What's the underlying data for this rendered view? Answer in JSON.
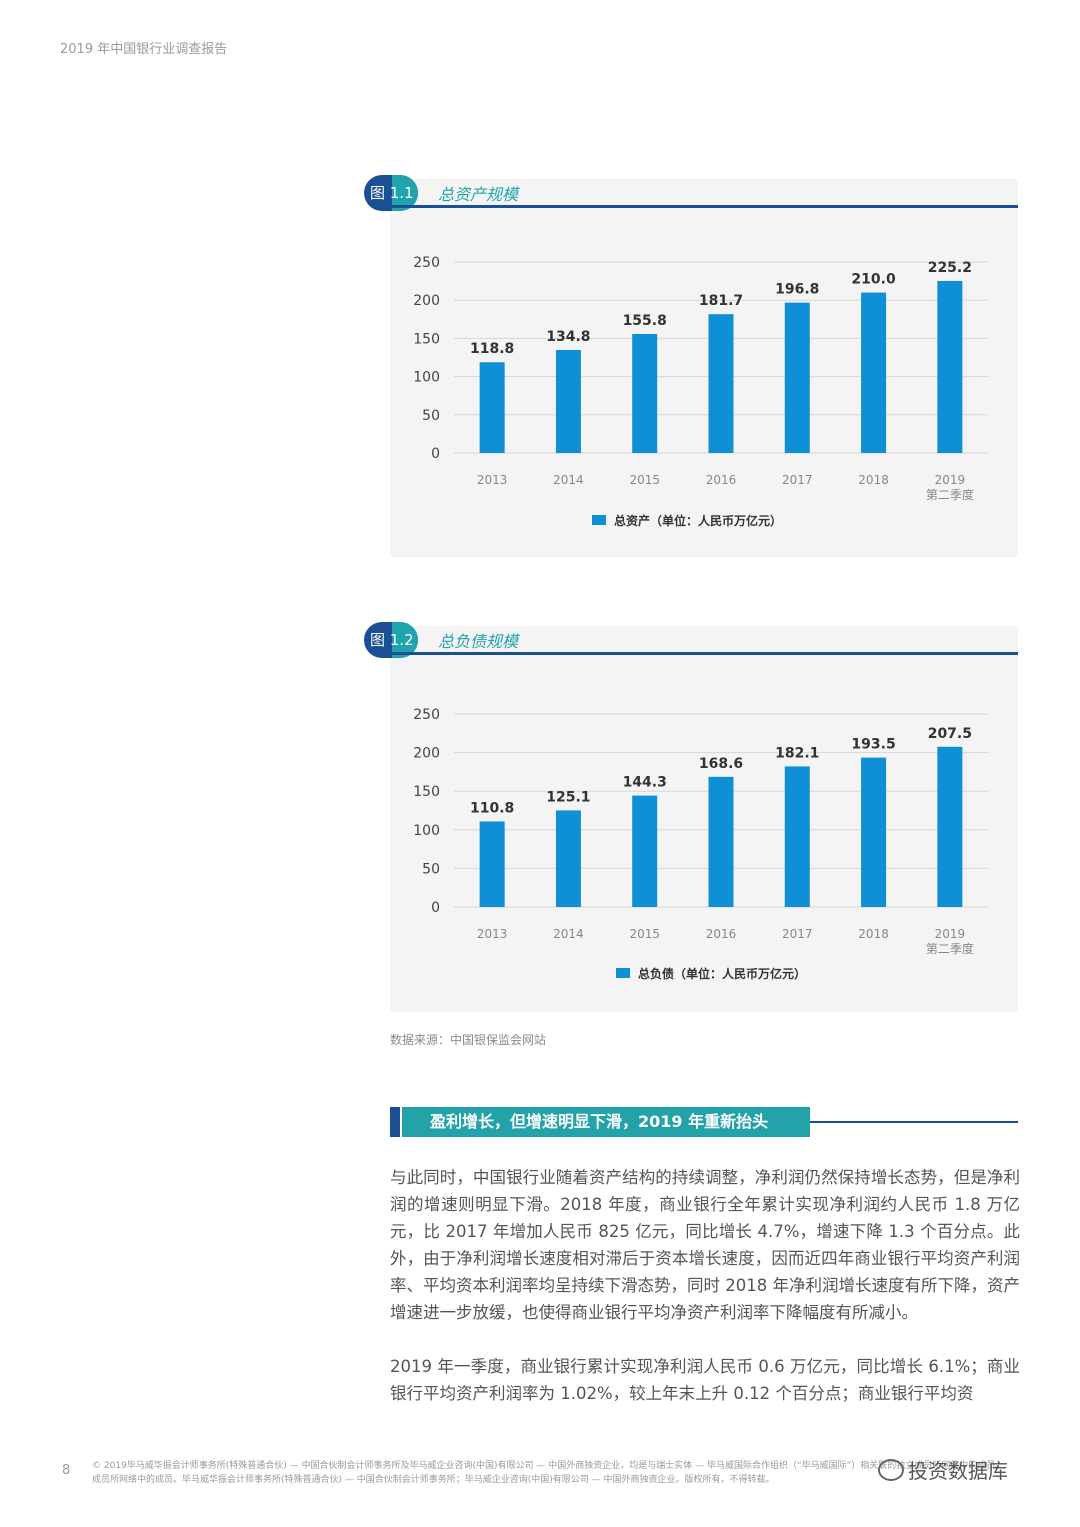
{
  "running_head": "2019 年中国银行业调查报告",
  "figures": [
    {
      "badge": "图 1.1",
      "title": "总资产规模",
      "chart_data": {
        "type": "bar",
        "categories": [
          "2013",
          "2014",
          "2015",
          "2016",
          "2017",
          "2018",
          "2019 第二季度"
        ],
        "series": [
          {
            "name": "总资产（单位：人民币万亿元）",
            "values": [
              118.8,
              134.8,
              155.8,
              181.7,
              196.8,
              210.0,
              225.2
            ]
          }
        ],
        "yticks": [
          0,
          50,
          100,
          150,
          200,
          250
        ],
        "ylim": [
          0,
          250
        ],
        "grid": true,
        "legend": "bottom",
        "color": "#0e8fd6"
      }
    },
    {
      "badge": "图 1.2",
      "title": "总负债规模",
      "chart_data": {
        "type": "bar",
        "categories": [
          "2013",
          "2014",
          "2015",
          "2016",
          "2017",
          "2018",
          "2019 第二季度"
        ],
        "series": [
          {
            "name": "总负债（单位：人民币万亿元）",
            "values": [
              110.8,
              125.1,
              144.3,
              168.6,
              182.1,
              193.5,
              207.5
            ]
          }
        ],
        "yticks": [
          0,
          50,
          100,
          150,
          200,
          250
        ],
        "ylim": [
          0,
          250
        ],
        "grid": true,
        "legend": "bottom",
        "color": "#0e8fd6"
      }
    }
  ],
  "source": "数据来源：中国银保监会网站",
  "section_title": "盈利增长，但增速明显下滑，2019 年重新抬头",
  "paragraphs": [
    "与此同时，中国银行业随着资产结构的持续调整，净利润仍然保持增长态势，但是净利润的增速则明显下滑。2018 年度，商业银行全年累计实现净利润约人民币 1.8 万亿元，比 2017 年增加人民币 825 亿元，同比增长 4.7%，增速下降 1.3 个百分点。此外，由于净利润增长速度相对滞后于资本增长速度，因而近四年商业银行平均资产利润率、平均资本利润率均呈持续下滑态势，同时 2018 年净利润增长速度有所下降，资产增速进一步放缓，也使得商业银行平均净资产利润率下降幅度有所减小。",
    "2019 年一季度，商业银行累计实现净利润人民币 0.6 万亿元，同比增长 6.1%；商业银行平均资产利润率为 1.02%，较上年末上升 0.12 个百分点；商业银行平均资"
  ],
  "footer": {
    "page_number": "8",
    "line1": "© 2019毕马威华振会计师事务所(特殊普通合伙) — 中国合伙制会计师事务所及毕马威企业咨询(中国)有限公司 — 中国外商独资企业，均是与瑞士实体 — 毕马威国际合作组织（“毕马威国际”）相关联的独立成员所网络中的成员。",
    "line2": "成员所网络中的成员。毕马威华振会计师事务所(特殊普通合伙) — 中国合伙制会计师事务所；毕马威企业咨询(中国)有限公司 — 中国外商独资企业。版权所有，不得转载。",
    "watermark": "投资数据库"
  }
}
